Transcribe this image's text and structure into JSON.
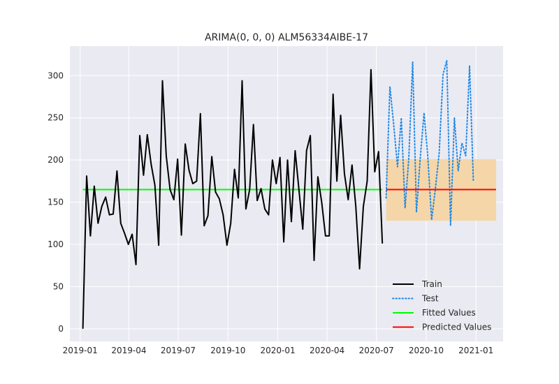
{
  "chart_data": {
    "type": "line",
    "title": "ARIMA(0, 0, 0) ALM56334AIBE-17",
    "xlabel": "",
    "ylabel": "",
    "ylim": [
      -15,
      335
    ],
    "yticks": [
      0,
      50,
      100,
      150,
      200,
      250,
      300
    ],
    "x_range": [
      "2018-12-13",
      "2021-02-20"
    ],
    "xticks": [
      "2019-01",
      "2019-04",
      "2019-07",
      "2019-10",
      "2020-01",
      "2020-04",
      "2020-07",
      "2020-10",
      "2021-01"
    ],
    "grid": true,
    "legend_position": "lower-right",
    "colors": {
      "plot_background": "#eaeaf2",
      "grid": "#ffffff",
      "train": "#000000",
      "test": "#1e88e5",
      "fitted": "#00ff00",
      "predicted": "#ff0000",
      "interval": "#f5d5a3"
    },
    "series": [
      {
        "name": "Train",
        "style": "solid",
        "x": [
          "2019-01-06",
          "2019-01-13",
          "2019-01-20",
          "2019-01-27",
          "2019-02-03",
          "2019-02-10",
          "2019-02-17",
          "2019-02-24",
          "2019-03-03",
          "2019-03-10",
          "2019-03-17",
          "2019-03-24",
          "2019-03-31",
          "2019-04-07",
          "2019-04-14",
          "2019-04-21",
          "2019-04-28",
          "2019-05-05",
          "2019-05-12",
          "2019-05-19",
          "2019-05-26",
          "2019-06-02",
          "2019-06-09",
          "2019-06-16",
          "2019-06-23",
          "2019-06-30",
          "2019-07-07",
          "2019-07-14",
          "2019-07-21",
          "2019-07-28",
          "2019-08-04",
          "2019-08-11",
          "2019-08-18",
          "2019-08-25",
          "2019-09-01",
          "2019-09-08",
          "2019-09-15",
          "2019-09-22",
          "2019-09-29",
          "2019-10-06",
          "2019-10-13",
          "2019-10-20",
          "2019-10-27",
          "2019-11-03",
          "2019-11-10",
          "2019-11-17",
          "2019-11-24",
          "2019-12-01",
          "2019-12-08",
          "2019-12-15",
          "2019-12-22",
          "2019-12-29",
          "2020-01-05",
          "2020-01-12",
          "2020-01-19",
          "2020-01-26",
          "2020-02-02",
          "2020-02-09",
          "2020-02-16",
          "2020-02-23",
          "2020-03-01",
          "2020-03-08",
          "2020-03-15",
          "2020-03-22",
          "2020-03-29",
          "2020-04-05",
          "2020-04-12",
          "2020-04-19",
          "2020-04-26",
          "2020-05-03",
          "2020-05-10",
          "2020-05-17",
          "2020-05-24",
          "2020-05-31",
          "2020-06-07",
          "2020-06-14",
          "2020-06-21",
          "2020-06-28",
          "2020-07-05",
          "2020-07-12"
        ],
        "values": [
          0,
          181,
          110,
          169,
          125,
          145,
          156,
          135,
          136,
          187,
          125,
          113,
          100,
          112,
          76,
          229,
          182,
          230,
          195,
          170,
          99,
          294,
          205,
          165,
          153,
          201,
          111,
          219,
          188,
          172,
          175,
          255,
          122,
          134,
          204,
          162,
          154,
          135,
          99,
          125,
          189,
          155,
          294,
          142,
          165,
          242,
          152,
          166,
          142,
          135,
          200,
          172,
          203,
          103,
          200,
          127,
          211,
          165,
          118,
          211,
          229,
          81,
          180,
          150,
          110,
          110,
          278,
          175,
          253,
          184,
          153,
          194,
          145,
          71,
          145,
          175,
          307,
          186,
          210,
          101
        ]
      },
      {
        "name": "Test",
        "style": "dotted",
        "x": [
          "2020-07-19",
          "2020-07-26",
          "2020-08-02",
          "2020-08-09",
          "2020-08-16",
          "2020-08-23",
          "2020-08-30",
          "2020-09-06",
          "2020-09-13",
          "2020-09-20",
          "2020-09-27",
          "2020-10-04",
          "2020-10-11",
          "2020-10-18",
          "2020-10-25",
          "2020-11-01",
          "2020-11-08",
          "2020-11-15",
          "2020-11-22",
          "2020-11-29",
          "2020-12-06",
          "2020-12-13",
          "2020-12-20",
          "2020-12-27",
          "2021-01-03",
          "2021-01-10",
          "2021-01-17",
          "2021-01-24"
        ],
        "values": [
          155,
          287,
          241,
          192,
          250,
          143,
          203,
          316,
          138,
          202,
          256,
          203,
          129,
          166,
          209,
          301,
          318,
          122,
          250,
          187,
          220,
          205,
          312,
          176,
          null,
          null,
          null,
          null
        ]
      },
      {
        "name": "Fitted Values",
        "style": "solid",
        "x": [
          "2019-01-06",
          "2020-07-12"
        ],
        "values": [
          165,
          165
        ]
      },
      {
        "name": "Predicted Values",
        "style": "solid",
        "x": [
          "2020-07-19",
          "2021-02-07"
        ],
        "values": [
          165,
          165
        ]
      }
    ],
    "prediction_interval": {
      "x": [
        "2020-07-19",
        "2021-02-07"
      ],
      "lower": 128,
      "upper": 201
    }
  }
}
